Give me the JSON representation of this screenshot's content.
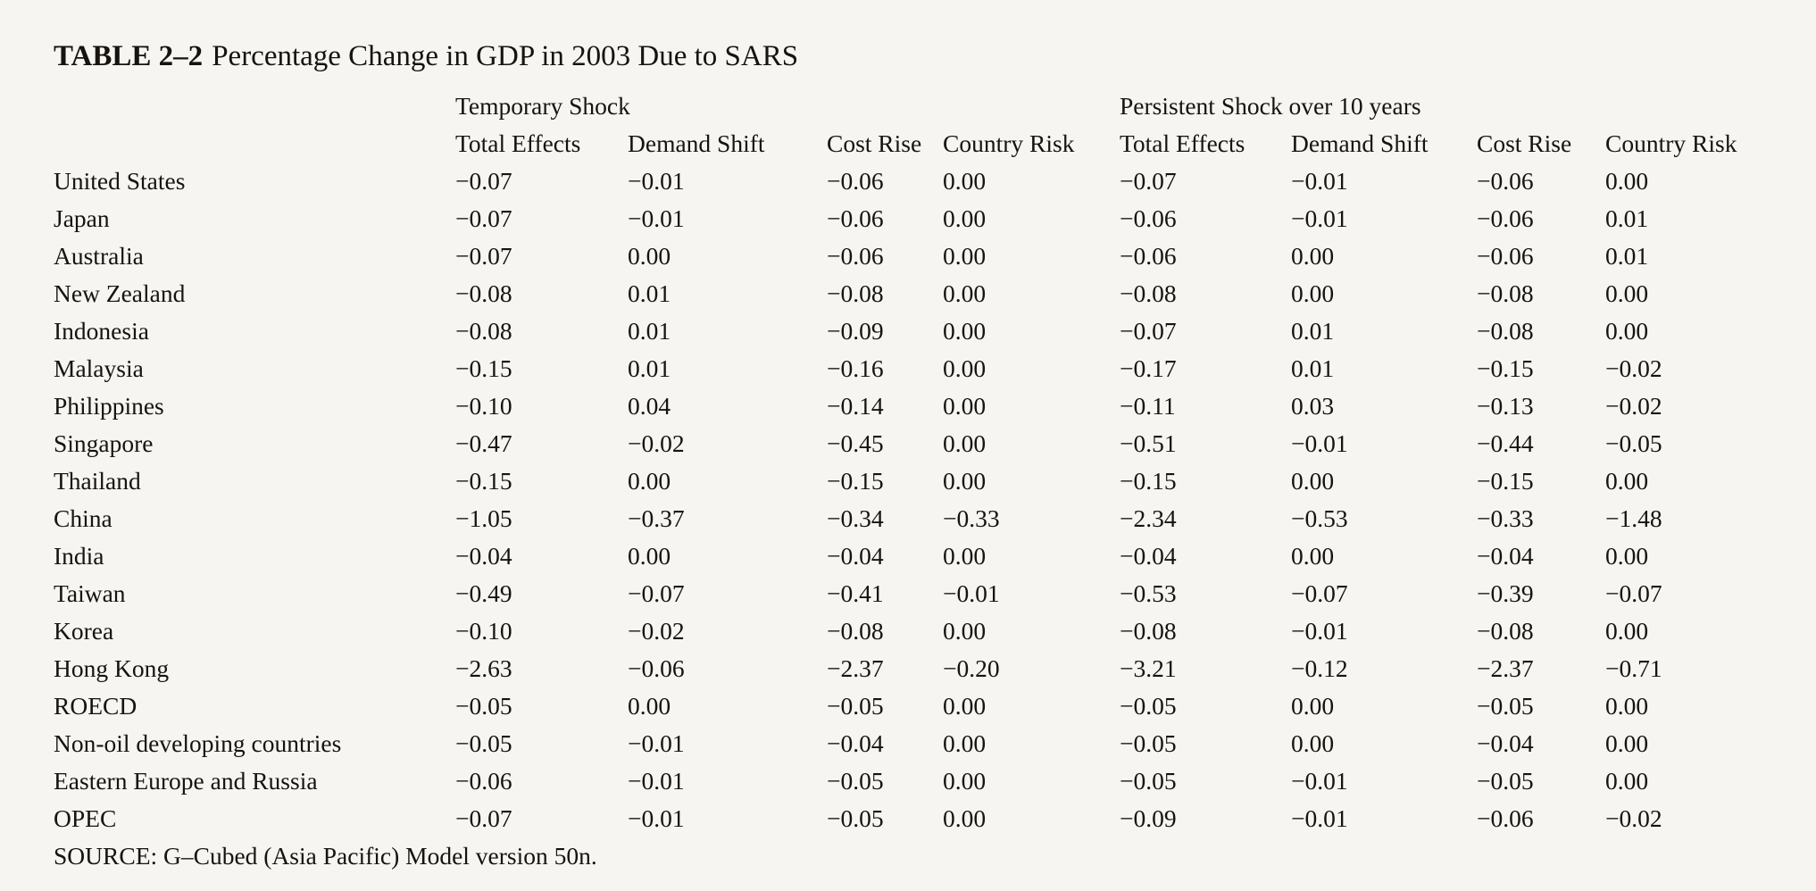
{
  "page": {
    "background_color": "#f7f5f1",
    "text_color": "#17140f"
  },
  "title": {
    "label": "TABLE 2–2",
    "text": "Percentage Change in GDP in 2003 Due to SARS"
  },
  "table": {
    "group_headers": [
      {
        "label": "Temporary Shock"
      },
      {
        "label": "Persistent Shock over 10 years"
      }
    ],
    "column_headers": [
      "Total Effects",
      "Demand Shift",
      "Cost Rise",
      "Country Risk",
      "Total Effects",
      "Demand Shift",
      "Cost Rise",
      "Country Risk"
    ],
    "rows": [
      {
        "country": "United States",
        "values": [
          "−0.07",
          "−0.01",
          "−0.06",
          "0.00",
          "−0.07",
          "−0.01",
          "−0.06",
          "0.00"
        ]
      },
      {
        "country": "Japan",
        "values": [
          "−0.07",
          "−0.01",
          "−0.06",
          "0.00",
          "−0.06",
          "−0.01",
          "−0.06",
          "0.01"
        ]
      },
      {
        "country": "Australia",
        "values": [
          "−0.07",
          "0.00",
          "−0.06",
          "0.00",
          "−0.06",
          "0.00",
          "−0.06",
          "0.01"
        ]
      },
      {
        "country": "New Zealand",
        "values": [
          "−0.08",
          "0.01",
          "−0.08",
          "0.00",
          "−0.08",
          "0.00",
          "−0.08",
          "0.00"
        ]
      },
      {
        "country": "Indonesia",
        "values": [
          "−0.08",
          "0.01",
          "−0.09",
          "0.00",
          "−0.07",
          "0.01",
          "−0.08",
          "0.00"
        ]
      },
      {
        "country": "Malaysia",
        "values": [
          "−0.15",
          "0.01",
          "−0.16",
          "0.00",
          "−0.17",
          "0.01",
          "−0.15",
          "−0.02"
        ]
      },
      {
        "country": "Philippines",
        "values": [
          "−0.10",
          "0.04",
          "−0.14",
          "0.00",
          "−0.11",
          "0.03",
          "−0.13",
          "−0.02"
        ]
      },
      {
        "country": "Singapore",
        "values": [
          "−0.47",
          "−0.02",
          "−0.45",
          "0.00",
          "−0.51",
          "−0.01",
          "−0.44",
          "−0.05"
        ]
      },
      {
        "country": "Thailand",
        "values": [
          "−0.15",
          "0.00",
          "−0.15",
          "0.00",
          "−0.15",
          "0.00",
          "−0.15",
          "0.00"
        ]
      },
      {
        "country": "China",
        "values": [
          "−1.05",
          "−0.37",
          "−0.34",
          "−0.33",
          "−2.34",
          "−0.53",
          "−0.33",
          "−1.48"
        ]
      },
      {
        "country": "India",
        "values": [
          "−0.04",
          "0.00",
          "−0.04",
          "0.00",
          "−0.04",
          "0.00",
          "−0.04",
          "0.00"
        ]
      },
      {
        "country": "Taiwan",
        "values": [
          "−0.49",
          "−0.07",
          "−0.41",
          "−0.01",
          "−0.53",
          "−0.07",
          "−0.39",
          "−0.07"
        ]
      },
      {
        "country": "Korea",
        "values": [
          "−0.10",
          "−0.02",
          "−0.08",
          "0.00",
          "−0.08",
          "−0.01",
          "−0.08",
          "0.00"
        ]
      },
      {
        "country": "Hong Kong",
        "values": [
          "−2.63",
          "−0.06",
          "−2.37",
          "−0.20",
          "−3.21",
          "−0.12",
          "−2.37",
          "−0.71"
        ]
      },
      {
        "country": "ROECD",
        "values": [
          "−0.05",
          "0.00",
          "−0.05",
          "0.00",
          "−0.05",
          "0.00",
          "−0.05",
          "0.00"
        ]
      },
      {
        "country": "Non-oil developing countries",
        "values": [
          "−0.05",
          "−0.01",
          "−0.04",
          "0.00",
          "−0.05",
          "0.00",
          "−0.04",
          "0.00"
        ]
      },
      {
        "country": "Eastern Europe and Russia",
        "values": [
          "−0.06",
          "−0.01",
          "−0.05",
          "0.00",
          "−0.05",
          "−0.01",
          "−0.05",
          "0.00"
        ]
      },
      {
        "country": "OPEC",
        "values": [
          "−0.07",
          "−0.01",
          "−0.05",
          "0.00",
          "−0.09",
          "−0.01",
          "−0.06",
          "−0.02"
        ]
      }
    ],
    "source": "SOURCE: G–Cubed (Asia Pacific) Model version 50n."
  }
}
